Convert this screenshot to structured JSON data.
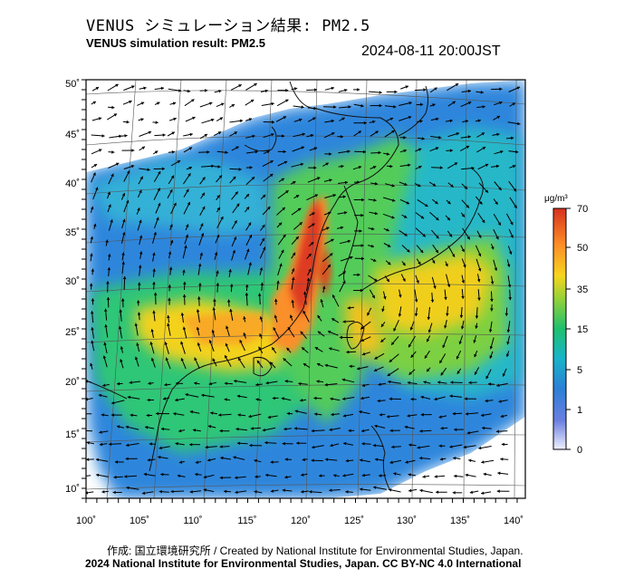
{
  "header": {
    "title": "VENUS シミュレーション結果: PM2.5",
    "subtitle": "VENUS simulation result: PM2.5",
    "timestamp": "2024-08-11 20:00JST"
  },
  "map": {
    "lon_labels": [
      "100˚",
      "105˚",
      "110˚",
      "115˚",
      "120˚",
      "125˚",
      "130˚",
      "135˚",
      "140˚"
    ],
    "lat_labels": [
      "50˚",
      "45˚",
      "40˚",
      "35˚",
      "30˚",
      "25˚",
      "20˚",
      "15˚",
      "10˚"
    ],
    "lon_range": [
      100,
      142
    ],
    "lat_range": [
      9,
      51
    ]
  },
  "legend": {
    "unit": "μg/m³",
    "ticks": [
      "70",
      "50",
      "35",
      "15",
      "5",
      "1",
      "0"
    ],
    "colors": [
      "#d7301f",
      "#fc8d27",
      "#f7d51e",
      "#8fd13a",
      "#1ec06e",
      "#17b5c9",
      "#2c7fd6",
      "#6b7fe0",
      "#eef0ff"
    ]
  },
  "footer": {
    "credit": "作成: 国立環境研究所 / Created by National Institute for Environmental Studies, Japan.",
    "copyright": "2024 National Institute for Environmental Studies, Japan. CC BY-NC 4.0 International"
  }
}
